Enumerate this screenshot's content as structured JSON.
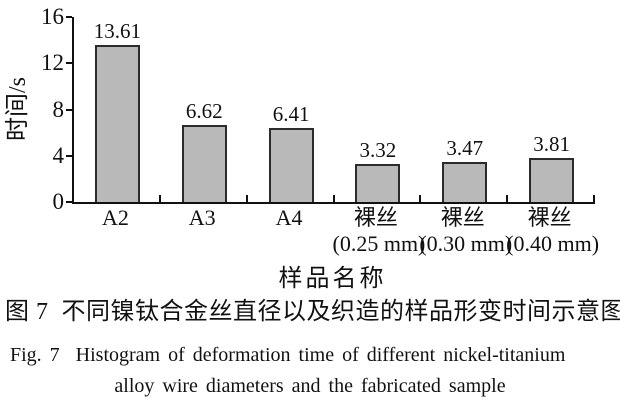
{
  "figure": {
    "caption_zh": "图 7  不同镍钛合金丝直径以及织造的样品形变时间示意图",
    "caption_en_line1": "Fig. 7  Histogram of deformation time of different nickel-titanium",
    "caption_en_line2": "alloy wire diameters and the fabricated sample"
  },
  "chart_data": {
    "type": "bar",
    "title": "",
    "categories": [
      "A2",
      "A3",
      "A4",
      "裸丝 (0.25 mm)",
      "裸丝 (0.30 mm)",
      "裸丝 (0.40 mm)"
    ],
    "category_labels": [
      {
        "main": "A2",
        "sub": ""
      },
      {
        "main": "A3",
        "sub": ""
      },
      {
        "main": "A4",
        "sub": ""
      },
      {
        "main": "裸丝",
        "sub": "(0.25 mm)"
      },
      {
        "main": "裸丝",
        "sub": "(0.30 mm)"
      },
      {
        "main": "裸丝",
        "sub": "(0.40 mm)"
      }
    ],
    "values": [
      13.61,
      6.62,
      6.41,
      3.32,
      3.47,
      3.81
    ],
    "value_labels": [
      "13.61",
      "6.62",
      "6.41",
      "3.32",
      "3.47",
      "3.81"
    ],
    "xlabel": "样品名称",
    "ylabel": "时间/s",
    "ylim": [
      0,
      16
    ],
    "yticks": [
      0,
      4,
      8,
      12,
      16
    ],
    "grid": false,
    "legend": false,
    "colors": {
      "bar_fill": "#b9b9b9",
      "bar_border": "#2b2b2b",
      "axis": "#111111",
      "text": "#111111",
      "background": "#ffffff"
    }
  }
}
